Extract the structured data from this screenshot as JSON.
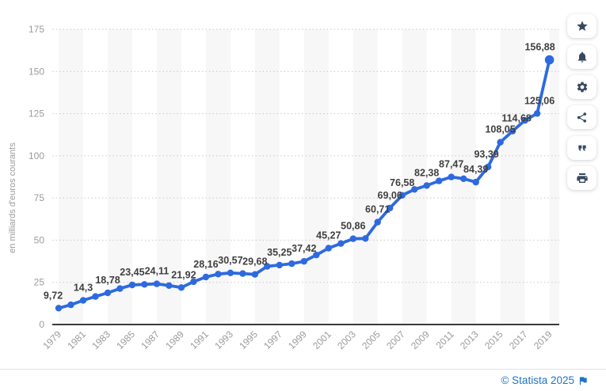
{
  "chart_data": {
    "type": "line",
    "title": "",
    "ylabel": "en milliards d'euros courants",
    "unit": "milliards d'euros courants",
    "x": [
      1979,
      1980,
      1981,
      1982,
      1983,
      1984,
      1985,
      1986,
      1987,
      1988,
      1989,
      1990,
      1991,
      1992,
      1993,
      1994,
      1995,
      1996,
      1997,
      1998,
      1999,
      2000,
      2001,
      2002,
      2003,
      2004,
      2005,
      2006,
      2007,
      2008,
      2009,
      2010,
      2011,
      2012,
      2013,
      2014,
      2015,
      2016,
      2017,
      2018,
      2019
    ],
    "values": [
      9.72,
      11.7,
      14.3,
      16.6,
      18.78,
      21.3,
      23.45,
      23.8,
      24.11,
      23.1,
      21.92,
      25.4,
      28.16,
      29.9,
      30.57,
      30.2,
      29.68,
      34.5,
      35.25,
      36.1,
      37.42,
      41.2,
      45.27,
      48.0,
      50.86,
      51.0,
      60.71,
      69.06,
      76.58,
      80.1,
      82.38,
      85.1,
      87.47,
      86.4,
      84.39,
      93.39,
      108.05,
      114.68,
      121.0,
      125.06,
      156.88
    ],
    "point_labels": [
      {
        "year": 1979,
        "label": "9,72",
        "dx": -7
      },
      {
        "year": 1981,
        "label": "14,3"
      },
      {
        "year": 1983,
        "label": "18,78"
      },
      {
        "year": 1985,
        "label": "23,45"
      },
      {
        "year": 1987,
        "label": "24,11"
      },
      {
        "year": 1989,
        "label": "21,92",
        "dx": 3
      },
      {
        "year": 1991,
        "label": "28,16"
      },
      {
        "year": 1993,
        "label": "30,57"
      },
      {
        "year": 1995,
        "label": "29,68"
      },
      {
        "year": 1997,
        "label": "35,25"
      },
      {
        "year": 1999,
        "label": "37,42"
      },
      {
        "year": 2001,
        "label": "45,27"
      },
      {
        "year": 2003,
        "label": "50,86"
      },
      {
        "year": 2005,
        "label": "60,71"
      },
      {
        "year": 2006,
        "label": "69,06"
      },
      {
        "year": 2007,
        "label": "76,58"
      },
      {
        "year": 2009,
        "label": "82,38"
      },
      {
        "year": 2011,
        "label": "87,47"
      },
      {
        "year": 2013,
        "label": "84,39"
      },
      {
        "year": 2014,
        "label": "93,39",
        "dx": -2
      },
      {
        "year": 2015,
        "label": "108,05"
      },
      {
        "year": 2016,
        "label": "114,68",
        "dx": 5
      },
      {
        "year": 2018,
        "label": "125,06",
        "dx": 3
      },
      {
        "year": 2019,
        "label": "156,88",
        "dx": -12
      }
    ],
    "xtick_labels": [
      "1979",
      "1981",
      "1983",
      "1985",
      "1987",
      "1989",
      "1991",
      "1993",
      "1995",
      "1997",
      "1999",
      "2001",
      "2003",
      "2005",
      "2007",
      "2009",
      "2011",
      "2013",
      "2015",
      "2017",
      "2019"
    ],
    "yticks": [
      0,
      25,
      50,
      75,
      100,
      125,
      150,
      175
    ],
    "ylim": [
      0,
      175
    ],
    "grid": "horizontal-dotted",
    "legend_position": "none",
    "line_color": "#2d6ae0",
    "point_label_color": "#3f3f3f",
    "tick_color": "#9b9b9b",
    "stripe_color": "#f7f7f7",
    "gridline_color": "#c9c9c9",
    "axis_line_color": "#1f1f1f"
  },
  "sidebar": {
    "icon_color": "#36495e",
    "buttons": [
      {
        "name": "favorite",
        "icon": "star-icon"
      },
      {
        "name": "notifications",
        "icon": "bell-icon"
      },
      {
        "name": "settings",
        "icon": "gear-icon"
      },
      {
        "name": "share",
        "icon": "share-icon"
      },
      {
        "name": "cite",
        "icon": "quote-icon"
      },
      {
        "name": "print",
        "icon": "printer-icon"
      }
    ]
  },
  "footer": {
    "credit": "© Statista 2025",
    "flag_icon": "flag-icon",
    "color": "#2273c8"
  }
}
